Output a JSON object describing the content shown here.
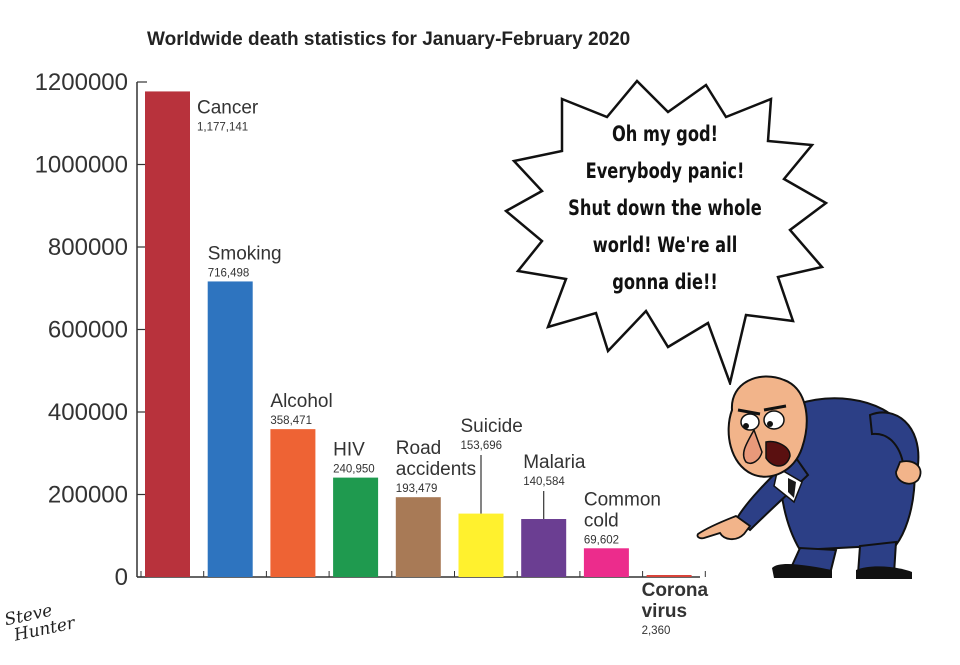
{
  "chart_data": {
    "type": "bar",
    "title": "Worldwide death statistics for January-February 2020",
    "xlabel": "",
    "ylabel": "",
    "ylim": [
      0,
      1200000
    ],
    "yticks": [
      "0",
      "200000",
      "400000",
      "600000",
      "800000",
      "1000000",
      "1200000"
    ],
    "categories": [
      "Cancer",
      "Smoking",
      "Alcohol",
      "HIV",
      "Road accidents",
      "Suicide",
      "Malaria",
      "Common cold",
      "Corona virus"
    ],
    "category_lines": [
      [
        "Cancer"
      ],
      [
        "Smoking"
      ],
      [
        "Alcohol"
      ],
      [
        "HIV"
      ],
      [
        "Road",
        "accidents"
      ],
      [
        "Suicide"
      ],
      [
        "Malaria"
      ],
      [
        "Common",
        "cold"
      ],
      [
        "Corona",
        "virus"
      ]
    ],
    "values": [
      1177141,
      716498,
      358471,
      240950,
      193479,
      153696,
      140584,
      69602,
      2360
    ],
    "value_labels": [
      "1,177,141",
      "716,498",
      "358,471",
      "240,950",
      "193,479",
      "153,696",
      "140,584",
      "69,602",
      "2,360"
    ],
    "colors": [
      "#b8323c",
      "#2e74bf",
      "#ee6334",
      "#1f9a4f",
      "#a87a56",
      "#fff12e",
      "#6b3e92",
      "#ec2c8c",
      "#d9433a"
    ],
    "grid": false,
    "legend": "none"
  },
  "speech_bubble": {
    "lines": [
      "Oh my god!",
      "Everybody panic!",
      "Shut down the whole",
      "world! We're all",
      "gonna die!!"
    ]
  },
  "signature": {
    "line1": "Steve",
    "line2": "Hunter"
  },
  "icons": {
    "character": "panicking-man-illustration",
    "bubble": "speech-burst-icon"
  }
}
